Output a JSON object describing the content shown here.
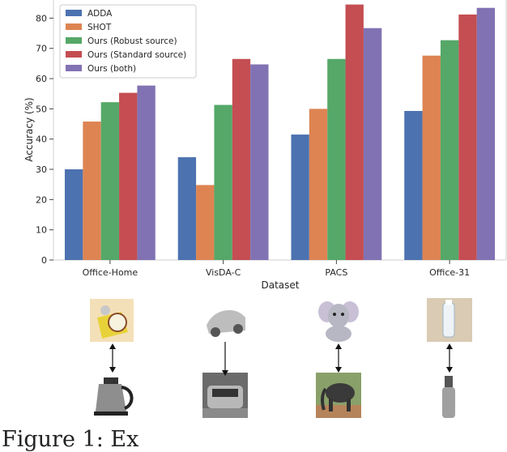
{
  "chart_data": {
    "type": "bar",
    "title": "",
    "xlabel": "Dataset",
    "ylabel": "Accuracy (%)",
    "ylim": [
      0,
      86
    ],
    "yticks": [
      0,
      10,
      20,
      30,
      40,
      50,
      60,
      70,
      80
    ],
    "grid": false,
    "legend_position": "top-left",
    "categories": [
      "Office-Home",
      "VisDA-C",
      "PACS",
      "Office-31"
    ],
    "series": [
      {
        "name": "ADDA",
        "color": "#4c72b0",
        "values": [
          30.0,
          34.0,
          41.5,
          49.3
        ]
      },
      {
        "name": "SHOT",
        "color": "#dd8452",
        "values": [
          45.8,
          24.8,
          50.0,
          67.6
        ]
      },
      {
        "name": "Ours (Robust source)",
        "color": "#55a868",
        "values": [
          52.2,
          51.3,
          66.5,
          72.7
        ]
      },
      {
        "name": "Ours (Standard source)",
        "color": "#c44e52",
        "values": [
          55.3,
          66.5,
          84.5,
          81.2
        ]
      },
      {
        "name": "Ours (both)",
        "color": "#8172b3",
        "values": [
          57.7,
          64.7,
          76.7,
          83.4
        ]
      }
    ]
  },
  "examples": [
    {
      "top_icon": "cartoon-kettle-image",
      "bottom_icon": "kettle-photo-image"
    },
    {
      "top_icon": "sketch-car-image",
      "bottom_icon": "car-photo-image"
    },
    {
      "top_icon": "cartoon-elephant-image",
      "bottom_icon": "elephant-photo-image"
    },
    {
      "top_icon": "water-bottle-image",
      "bottom_icon": "steel-bottle-image"
    }
  ],
  "caption": "Figure 1: Ex"
}
